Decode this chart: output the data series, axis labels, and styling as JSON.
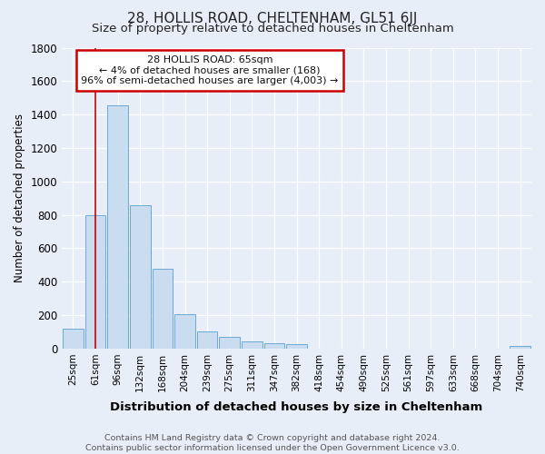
{
  "title1": "28, HOLLIS ROAD, CHELTENHAM, GL51 6JJ",
  "title2": "Size of property relative to detached houses in Cheltenham",
  "xlabel": "Distribution of detached houses by size in Cheltenham",
  "ylabel": "Number of detached properties",
  "categories": [
    "25sqm",
    "61sqm",
    "96sqm",
    "132sqm",
    "168sqm",
    "204sqm",
    "239sqm",
    "275sqm",
    "311sqm",
    "347sqm",
    "382sqm",
    "418sqm",
    "454sqm",
    "490sqm",
    "525sqm",
    "561sqm",
    "597sqm",
    "633sqm",
    "668sqm",
    "704sqm",
    "740sqm"
  ],
  "values": [
    120,
    800,
    1455,
    860,
    475,
    205,
    105,
    68,
    45,
    32,
    25,
    0,
    0,
    0,
    0,
    0,
    0,
    0,
    0,
    0,
    15
  ],
  "bar_color": "#c9dcf0",
  "bar_edge_color": "#6aaad4",
  "background_color": "#e8eef8",
  "grid_color": "#ffffff",
  "ylim": [
    0,
    1800
  ],
  "yticks": [
    0,
    200,
    400,
    600,
    800,
    1000,
    1200,
    1400,
    1600,
    1800
  ],
  "red_line_x": 1.0,
  "annotation_title": "28 HOLLIS ROAD: 65sqm",
  "annotation_line1": "← 4% of detached houses are smaller (168)",
  "annotation_line2": "96% of semi-detached houses are larger (4,003) →",
  "annotation_box_color": "#ffffff",
  "annotation_border_color": "#cc0000",
  "footer1": "Contains HM Land Registry data © Crown copyright and database right 2024.",
  "footer2": "Contains public sector information licensed under the Open Government Licence v3.0."
}
